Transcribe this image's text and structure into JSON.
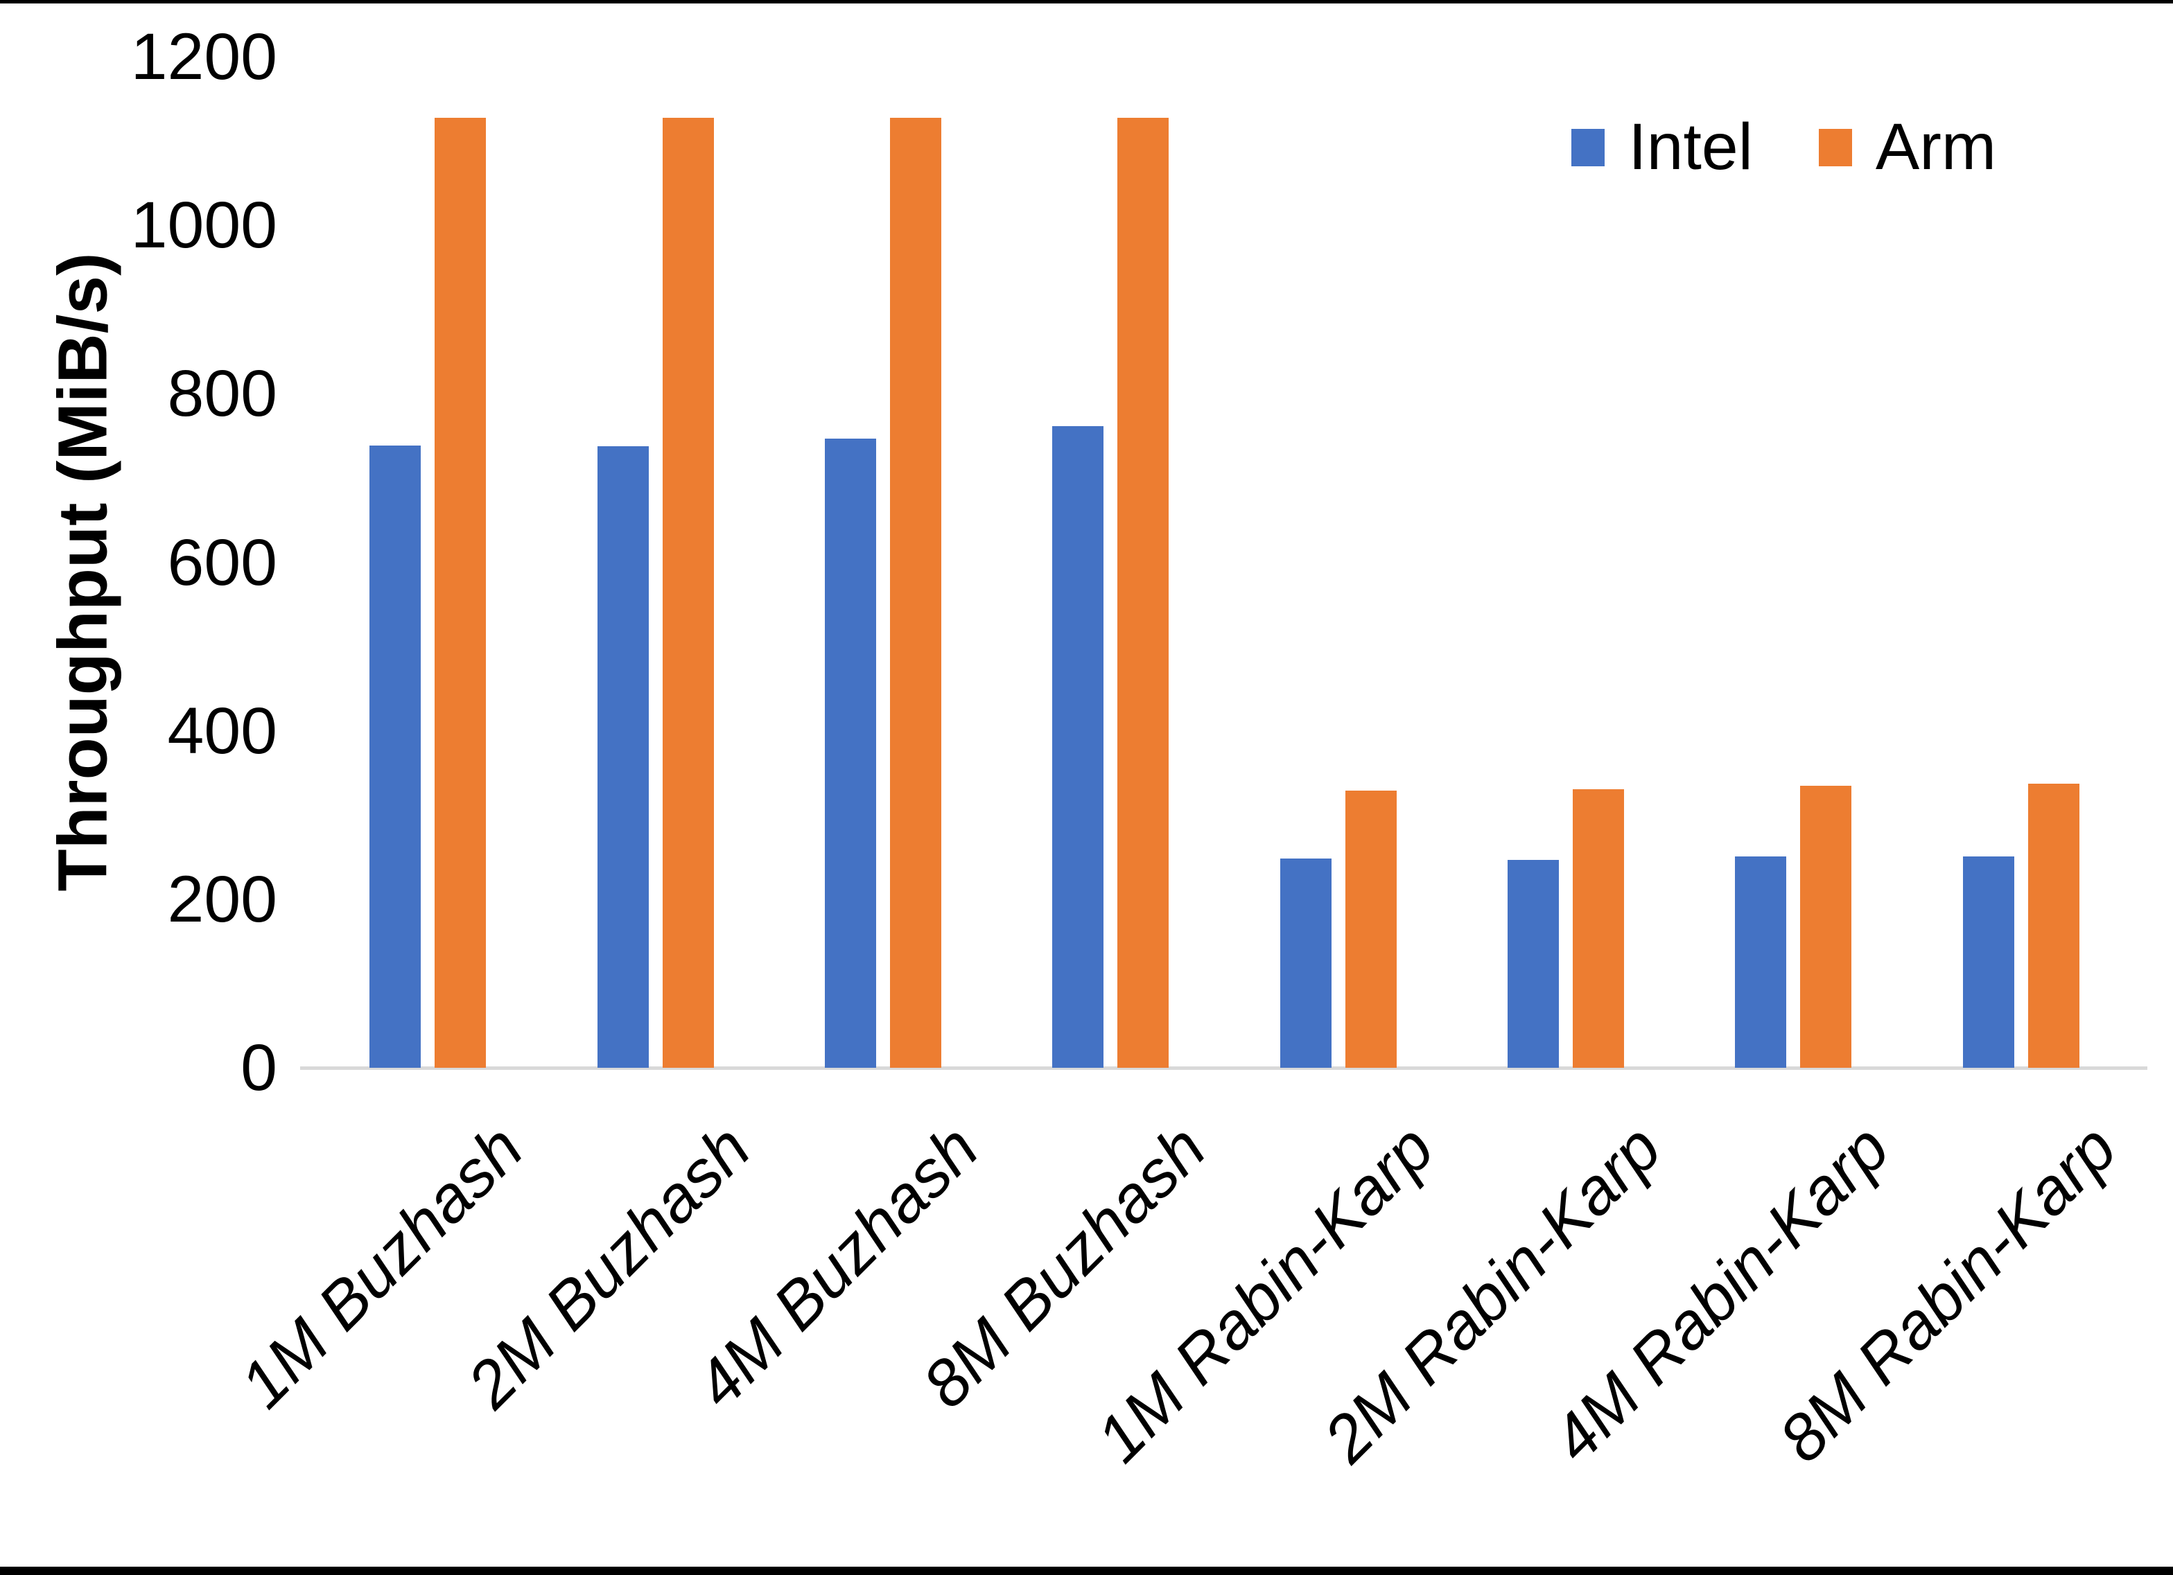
{
  "chart_data": {
    "type": "bar",
    "title": "",
    "xlabel": "",
    "ylabel": "Throughput (MiB/s)",
    "ylim": [
      0,
      1200
    ],
    "yticks": [
      0,
      200,
      400,
      600,
      800,
      1000,
      1200
    ],
    "grid": false,
    "legend_position": "top-right",
    "categories": [
      "1M Buzhash",
      "2M Buzhash",
      "4M Buzhash",
      "8M Buzhash",
      "1M Rabin-Karp",
      "2M Rabin-Karp",
      "4M Rabin-Karp",
      "8M Rabin-Karp"
    ],
    "series": [
      {
        "name": "Intel",
        "color": "#4472C4",
        "values": [
          739,
          738,
          747,
          762,
          248,
          247,
          251,
          251
        ]
      },
      {
        "name": "Arm",
        "color": "#ED7D31",
        "values": [
          1128,
          1128,
          1128,
          1128,
          329,
          331,
          335,
          337
        ]
      }
    ]
  },
  "colors": {
    "axis_line": "#D9D9D9",
    "text": "#000000",
    "page_border": "#000000",
    "background": "#FFFFFF"
  }
}
